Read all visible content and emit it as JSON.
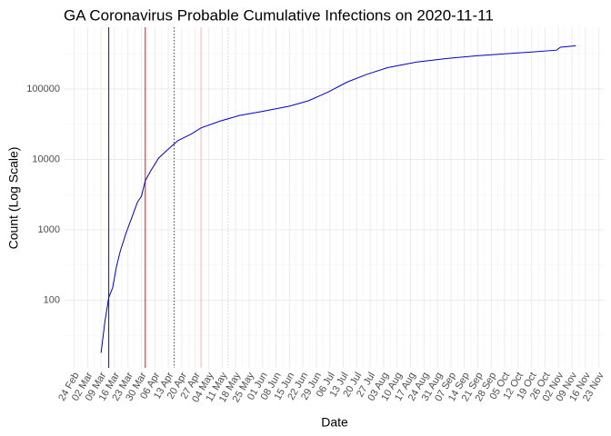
{
  "chart_data": {
    "type": "line",
    "title": "GA Coronavirus Probable Cumulative Infections on 2020-11-11",
    "x_label": "Date",
    "y_label": "Count (Log Scale)",
    "log_y": true,
    "grid": true,
    "x": [
      "09 Mar",
      "11 Mar",
      "13 Mar",
      "15 Mar",
      "17 Mar",
      "19 Mar",
      "22 Mar",
      "25 Mar",
      "28 Mar",
      "30 Mar",
      "01 Apr",
      "04 Apr",
      "08 Apr",
      "13 Apr",
      "18 Apr",
      "25 Apr",
      "30 Apr",
      "10 May",
      "20 May",
      "01 Jun",
      "15 Jun",
      "25 Jun",
      "05 Jul",
      "15 Jul",
      "25 Jul",
      "05 Aug",
      "20 Aug",
      "05 Sep",
      "20 Sep",
      "05 Oct",
      "20 Oct",
      "01 Nov",
      "03 Nov",
      "11 Nov"
    ],
    "series": [
      {
        "color": "#0000cc",
        "values": [
          18,
          50,
          110,
          150,
          300,
          500,
          900,
          1500,
          2500,
          3000,
          5000,
          7000,
          10500,
          14000,
          18500,
          23000,
          28000,
          35000,
          42000,
          48000,
          57000,
          68000,
          90000,
          125000,
          160000,
          200000,
          240000,
          270000,
          295000,
          315000,
          335000,
          355000,
          390000,
          410000
        ]
      }
    ],
    "xlim": [
      "19 Feb",
      "26 Nov"
    ],
    "xticks": [
      "24 Feb",
      "02 Mar",
      "09 Mar",
      "16 Mar",
      "23 Mar",
      "30 Mar",
      "06 Apr",
      "13 Apr",
      "20 Apr",
      "27 Apr",
      "04 May",
      "11 May",
      "18 May",
      "25 May",
      "01 Jun",
      "08 Jun",
      "15 Jun",
      "22 Jun",
      "29 Jun",
      "06 Jul",
      "13 Jul",
      "20 Jul",
      "27 Jul",
      "03 Aug",
      "10 Aug",
      "17 Aug",
      "24 Aug",
      "31 Aug",
      "07 Sep",
      "14 Sep",
      "21 Sep",
      "28 Sep",
      "05 Oct",
      "12 Oct",
      "19 Oct",
      "26 Oct",
      "02 Nov",
      "09 Nov",
      "16 Nov",
      "23 Nov"
    ],
    "ylim": [
      11,
      750000
    ],
    "yticks": [
      100,
      1000,
      10000,
      100000
    ],
    "vlines": [
      {
        "x": "13 Mar",
        "color": "#0000ff",
        "dash": false
      },
      {
        "x": "01 Apr",
        "color": "#ff0000",
        "dash": false
      },
      {
        "x": "16 Apr",
        "color": "#ff0000",
        "dash": true
      },
      {
        "x": "30 Apr",
        "color": "#ffb0b0",
        "dash": false
      },
      {
        "x": "14 May",
        "color": "#d8d8d8",
        "dash": true
      }
    ]
  }
}
